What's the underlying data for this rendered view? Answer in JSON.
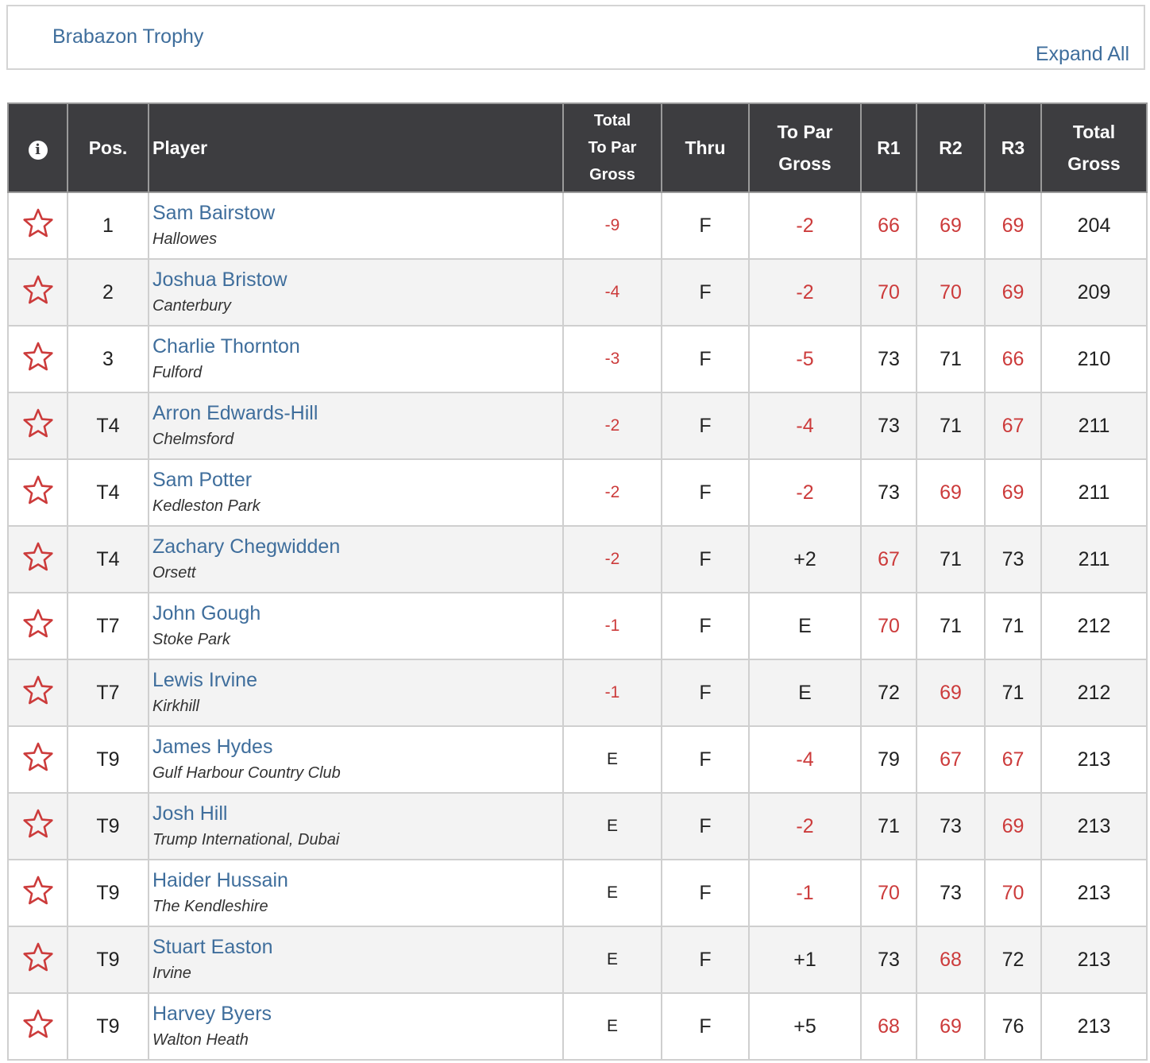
{
  "header": {
    "title": "Brabazon Trophy",
    "expand_label": "Expand All"
  },
  "colors": {
    "link": "#3f6e9c",
    "under_par": "#cc3b3b",
    "header_bg": "#3d3d40"
  },
  "table": {
    "columns": {
      "info_icon": "info-icon",
      "pos": "Pos.",
      "player": "Player",
      "total_to_par_gross": [
        "Total",
        "To Par",
        "Gross"
      ],
      "thru": "Thru",
      "to_par_gross": [
        "To Par",
        "Gross"
      ],
      "r1": "R1",
      "r2": "R2",
      "r3": "R3",
      "total_gross": [
        "Total",
        "Gross"
      ]
    },
    "favorite_icon": "star-outline-icon",
    "rows": [
      {
        "pos": "1",
        "name": "Sam Bairstow",
        "club": "Hallowes",
        "tpg": "-9",
        "thru": "F",
        "tp": "-2",
        "r1": "66",
        "r2": "69",
        "r3": "69",
        "total": "204",
        "tpg_red": true,
        "tp_red": true,
        "r1_red": true,
        "r2_red": true,
        "r3_red": true
      },
      {
        "pos": "2",
        "name": "Joshua Bristow",
        "club": "Canterbury",
        "tpg": "-4",
        "thru": "F",
        "tp": "-2",
        "r1": "70",
        "r2": "70",
        "r3": "69",
        "total": "209",
        "tpg_red": true,
        "tp_red": true,
        "r1_red": true,
        "r2_red": true,
        "r3_red": true
      },
      {
        "pos": "3",
        "name": "Charlie Thornton",
        "club": "Fulford",
        "tpg": "-3",
        "thru": "F",
        "tp": "-5",
        "r1": "73",
        "r2": "71",
        "r3": "66",
        "total": "210",
        "tpg_red": true,
        "tp_red": true,
        "r1_red": false,
        "r2_red": false,
        "r3_red": true
      },
      {
        "pos": "T4",
        "name": "Arron Edwards-Hill",
        "club": "Chelmsford",
        "tpg": "-2",
        "thru": "F",
        "tp": "-4",
        "r1": "73",
        "r2": "71",
        "r3": "67",
        "total": "211",
        "tpg_red": true,
        "tp_red": true,
        "r1_red": false,
        "r2_red": false,
        "r3_red": true
      },
      {
        "pos": "T4",
        "name": "Sam Potter",
        "club": "Kedleston Park",
        "tpg": "-2",
        "thru": "F",
        "tp": "-2",
        "r1": "73",
        "r2": "69",
        "r3": "69",
        "total": "211",
        "tpg_red": true,
        "tp_red": true,
        "r1_red": false,
        "r2_red": true,
        "r3_red": true
      },
      {
        "pos": "T4",
        "name": "Zachary Chegwidden",
        "club": "Orsett",
        "tpg": "-2",
        "thru": "F",
        "tp": "+2",
        "r1": "67",
        "r2": "71",
        "r3": "73",
        "total": "211",
        "tpg_red": true,
        "tp_red": false,
        "r1_red": true,
        "r2_red": false,
        "r3_red": false
      },
      {
        "pos": "T7",
        "name": "John Gough",
        "club": "Stoke Park",
        "tpg": "-1",
        "thru": "F",
        "tp": "E",
        "r1": "70",
        "r2": "71",
        "r3": "71",
        "total": "212",
        "tpg_red": true,
        "tp_red": false,
        "r1_red": true,
        "r2_red": false,
        "r3_red": false
      },
      {
        "pos": "T7",
        "name": "Lewis Irvine",
        "club": "Kirkhill",
        "tpg": "-1",
        "thru": "F",
        "tp": "E",
        "r1": "72",
        "r2": "69",
        "r3": "71",
        "total": "212",
        "tpg_red": true,
        "tp_red": false,
        "r1_red": false,
        "r2_red": true,
        "r3_red": false
      },
      {
        "pos": "T9",
        "name": "James Hydes",
        "club": "Gulf Harbour Country Club",
        "tpg": "E",
        "thru": "F",
        "tp": "-4",
        "r1": "79",
        "r2": "67",
        "r3": "67",
        "total": "213",
        "tpg_red": false,
        "tp_red": true,
        "r1_red": false,
        "r2_red": true,
        "r3_red": true
      },
      {
        "pos": "T9",
        "name": "Josh Hill",
        "club": "Trump International, Dubai",
        "tpg": "E",
        "thru": "F",
        "tp": "-2",
        "r1": "71",
        "r2": "73",
        "r3": "69",
        "total": "213",
        "tpg_red": false,
        "tp_red": true,
        "r1_red": false,
        "r2_red": false,
        "r3_red": true
      },
      {
        "pos": "T9",
        "name": "Haider Hussain",
        "club": "The Kendleshire",
        "tpg": "E",
        "thru": "F",
        "tp": "-1",
        "r1": "70",
        "r2": "73",
        "r3": "70",
        "total": "213",
        "tpg_red": false,
        "tp_red": true,
        "r1_red": true,
        "r2_red": false,
        "r3_red": true
      },
      {
        "pos": "T9",
        "name": "Stuart Easton",
        "club": "Irvine",
        "tpg": "E",
        "thru": "F",
        "tp": "+1",
        "r1": "73",
        "r2": "68",
        "r3": "72",
        "total": "213",
        "tpg_red": false,
        "tp_red": false,
        "r1_red": false,
        "r2_red": true,
        "r3_red": false
      },
      {
        "pos": "T9",
        "name": "Harvey Byers",
        "club": "Walton Heath",
        "tpg": "E",
        "thru": "F",
        "tp": "+5",
        "r1": "68",
        "r2": "69",
        "r3": "76",
        "total": "213",
        "tpg_red": false,
        "tp_red": false,
        "r1_red": true,
        "r2_red": true,
        "r3_red": false
      }
    ]
  }
}
